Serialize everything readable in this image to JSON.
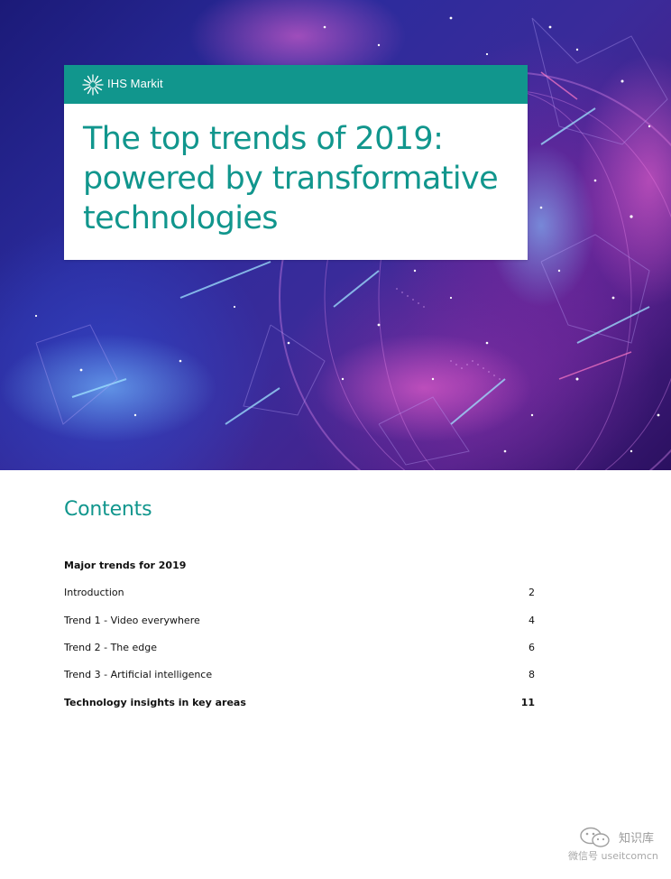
{
  "brand": {
    "name": "IHS Markit"
  },
  "cover": {
    "title_lines": [
      "The top trends of 2019:",
      "powered by transformative",
      "technologies"
    ]
  },
  "contents": {
    "heading": "Contents",
    "items": [
      {
        "label": "Major trends for 2019",
        "page": "",
        "bold": true
      },
      {
        "label": "Introduction",
        "page": "2",
        "bold": false
      },
      {
        "label": "Trend 1 - Video everywhere",
        "page": "4",
        "bold": false
      },
      {
        "label": "Trend 2 - The edge",
        "page": "6",
        "bold": false
      },
      {
        "label": "Trend 3 - Artificial intelligence",
        "page": "8",
        "bold": false
      },
      {
        "label": "Technology insights in key areas",
        "page": "11",
        "bold": true
      }
    ]
  },
  "watermark": {
    "brand": "知识库",
    "account": "微信号 useitcomcn"
  },
  "colors": {
    "teal": "#11968d",
    "text": "#111111"
  }
}
